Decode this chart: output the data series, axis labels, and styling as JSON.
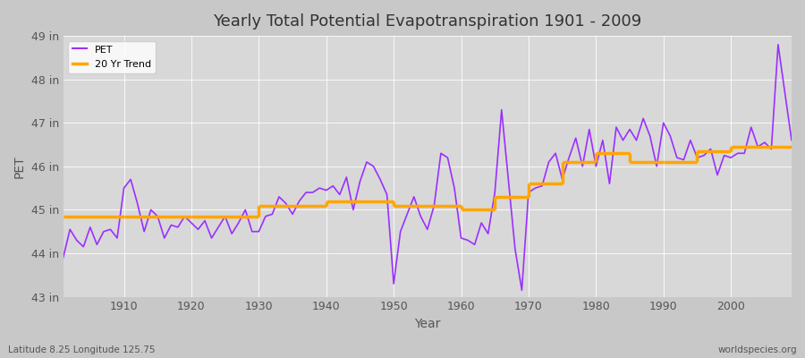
{
  "title": "Yearly Total Potential Evapotranspiration 1901 - 2009",
  "xlabel": "Year",
  "ylabel": "PET",
  "subtitle": "Latitude 8.25 Longitude 125.75",
  "watermark": "worldspecies.org",
  "pet_color": "#9B30FF",
  "trend_color": "#FFA500",
  "background_color": "#C8C8C8",
  "plot_bg_color": "#D8D8D8",
  "ylim": [
    43,
    49
  ],
  "yticks": [
    43,
    44,
    45,
    46,
    47,
    48,
    49
  ],
  "ytick_labels": [
    "43 in",
    "44 in",
    "45 in",
    "46 in",
    "47 in",
    "48 in",
    "49 in"
  ],
  "years": [
    1901,
    1902,
    1903,
    1904,
    1905,
    1906,
    1907,
    1908,
    1909,
    1910,
    1911,
    1912,
    1913,
    1914,
    1915,
    1916,
    1917,
    1918,
    1919,
    1920,
    1921,
    1922,
    1923,
    1924,
    1925,
    1926,
    1927,
    1928,
    1929,
    1930,
    1931,
    1932,
    1933,
    1934,
    1935,
    1936,
    1937,
    1938,
    1939,
    1940,
    1941,
    1942,
    1943,
    1944,
    1945,
    1946,
    1947,
    1948,
    1949,
    1950,
    1951,
    1952,
    1953,
    1954,
    1955,
    1956,
    1957,
    1958,
    1959,
    1960,
    1961,
    1962,
    1963,
    1964,
    1965,
    1966,
    1967,
    1968,
    1969,
    1970,
    1971,
    1972,
    1973,
    1974,
    1975,
    1976,
    1977,
    1978,
    1979,
    1980,
    1981,
    1982,
    1983,
    1984,
    1985,
    1986,
    1987,
    1988,
    1989,
    1990,
    1991,
    1992,
    1993,
    1994,
    1995,
    1996,
    1997,
    1998,
    1999,
    2000,
    2001,
    2002,
    2003,
    2004,
    2005,
    2006,
    2007,
    2008,
    2009
  ],
  "pet_values": [
    43.9,
    44.55,
    44.3,
    44.15,
    44.6,
    44.2,
    44.5,
    44.55,
    44.35,
    45.5,
    45.7,
    45.15,
    44.5,
    45.0,
    44.85,
    44.35,
    44.65,
    44.6,
    44.85,
    44.7,
    44.55,
    44.75,
    44.35,
    44.6,
    44.85,
    44.45,
    44.7,
    45.0,
    44.5,
    44.5,
    44.85,
    44.9,
    45.3,
    45.15,
    44.9,
    45.2,
    45.4,
    45.4,
    45.5,
    45.45,
    45.55,
    45.35,
    45.75,
    45.0,
    45.65,
    46.1,
    46.0,
    45.7,
    45.35,
    43.3,
    44.5,
    44.9,
    45.3,
    44.85,
    44.55,
    45.1,
    46.3,
    46.2,
    45.5,
    44.35,
    44.3,
    44.2,
    44.7,
    44.45,
    45.4,
    47.3,
    45.7,
    44.1,
    43.15,
    45.4,
    45.5,
    45.55,
    46.1,
    46.3,
    45.7,
    46.2,
    46.65,
    46.0,
    46.85,
    46.0,
    46.6,
    45.6,
    46.9,
    46.6,
    46.85,
    46.6,
    47.1,
    46.7,
    46.0,
    47.0,
    46.7,
    46.2,
    46.15,
    46.6,
    46.2,
    46.25,
    46.4,
    45.8,
    46.25,
    46.2,
    46.3,
    46.3,
    46.9,
    46.45,
    46.55,
    46.4,
    48.8,
    47.7,
    46.6
  ],
  "trend_data": [
    [
      1901,
      1910,
      44.85
    ],
    [
      1910,
      1920,
      44.85
    ],
    [
      1920,
      1930,
      44.85
    ],
    [
      1930,
      1940,
      45.1
    ],
    [
      1940,
      1950,
      45.2
    ],
    [
      1950,
      1960,
      45.1
    ],
    [
      1960,
      1965,
      45.0
    ],
    [
      1965,
      1970,
      45.3
    ],
    [
      1970,
      1975,
      45.6
    ],
    [
      1975,
      1980,
      46.1
    ],
    [
      1980,
      1985,
      46.3
    ],
    [
      1985,
      1990,
      46.1
    ],
    [
      1990,
      1995,
      46.1
    ],
    [
      1995,
      2000,
      46.35
    ],
    [
      2000,
      2005,
      46.45
    ],
    [
      2005,
      2009,
      46.45
    ]
  ]
}
